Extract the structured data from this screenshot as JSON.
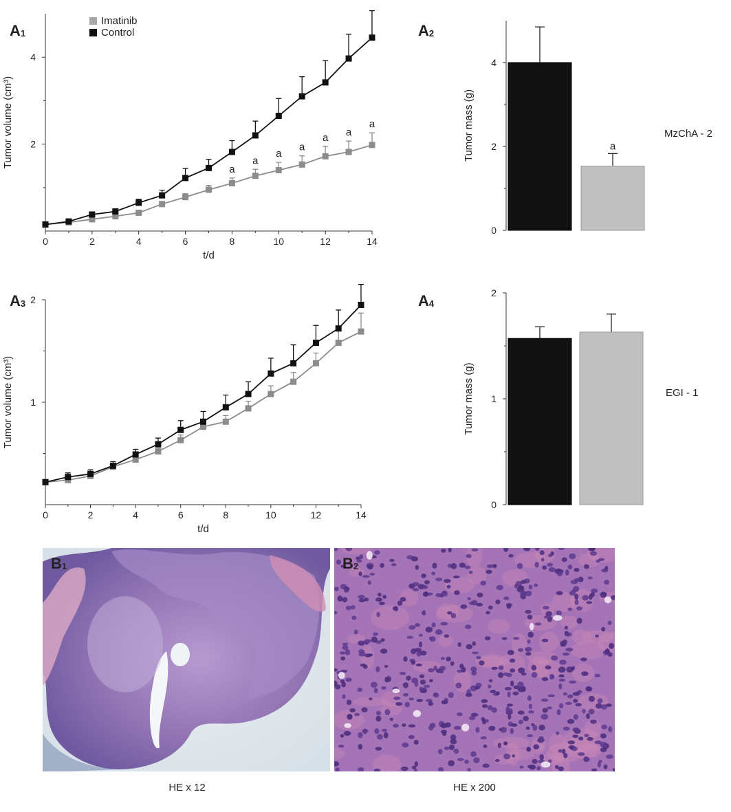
{
  "panels": {
    "a1": {
      "label": "A",
      "sub": "1"
    },
    "a2": {
      "label": "A",
      "sub": "2"
    },
    "a3": {
      "label": "A",
      "sub": "3"
    },
    "a4": {
      "label": "A",
      "sub": "4"
    },
    "b1": {
      "label": "B",
      "sub": "1"
    },
    "b2": {
      "label": "B",
      "sub": "2"
    }
  },
  "legend": {
    "imatinib": "Imatinib",
    "control": "Control"
  },
  "colors": {
    "control": "#111111",
    "imatinib": "#8c8c8c",
    "imatinib_bar": "#c0c0c0",
    "tissue_light": "#cdbfe0",
    "tissue_dark": "#8a64a8",
    "tissue_pink": "#d19ab8"
  },
  "row_labels": {
    "mzcha": "MzChA - 2",
    "egi": "EGI - 1"
  },
  "captions": {
    "b1": "HE x 12",
    "b2": "HE x 200"
  },
  "chart_data": [
    {
      "id": "A1",
      "type": "line",
      "xlabel": "t/d",
      "ylabel": "Tumor volume (cm³)",
      "xlim": [
        0,
        14
      ],
      "ylim": [
        0,
        5
      ],
      "xticks": [
        0,
        2,
        4,
        6,
        8,
        10,
        12,
        14
      ],
      "yticks": [
        2,
        4
      ],
      "x": [
        0,
        1,
        2,
        3,
        4,
        5,
        6,
        7,
        8,
        9,
        10,
        11,
        12,
        13,
        14
      ],
      "series": [
        {
          "name": "Imatinib",
          "values": [
            0.15,
            0.2,
            0.27,
            0.34,
            0.42,
            0.62,
            0.78,
            0.95,
            1.1,
            1.27,
            1.4,
            1.53,
            1.72,
            1.82,
            1.98
          ],
          "errors": [
            0.03,
            0.03,
            0.03,
            0.04,
            0.05,
            0.06,
            0.08,
            0.1,
            0.12,
            0.15,
            0.18,
            0.2,
            0.23,
            0.25,
            0.28
          ]
        },
        {
          "name": "Control",
          "values": [
            0.15,
            0.22,
            0.38,
            0.45,
            0.65,
            0.82,
            1.22,
            1.45,
            1.82,
            2.2,
            2.65,
            3.1,
            3.42,
            3.97,
            4.45
          ],
          "errors": [
            0.03,
            0.04,
            0.05,
            0.06,
            0.08,
            0.12,
            0.22,
            0.2,
            0.26,
            0.33,
            0.4,
            0.45,
            0.5,
            0.56,
            0.62
          ]
        }
      ],
      "annotations": [
        {
          "x": 8,
          "text": "a"
        },
        {
          "x": 9,
          "text": "a"
        },
        {
          "x": 10,
          "text": "a"
        },
        {
          "x": 11,
          "text": "a"
        },
        {
          "x": 12,
          "text": "a"
        },
        {
          "x": 13,
          "text": "a"
        },
        {
          "x": 14,
          "text": "a"
        }
      ]
    },
    {
      "id": "A2",
      "type": "bar",
      "ylabel": "Tumor mass (g)",
      "ylim": [
        0,
        5
      ],
      "yticks": [
        0,
        2,
        4
      ],
      "categories": [
        "Control",
        "Imatinib"
      ],
      "values": [
        4.0,
        1.53
      ],
      "errors": [
        0.85,
        0.3
      ],
      "annotations": [
        {
          "category": "Imatinib",
          "text": "a"
        }
      ]
    },
    {
      "id": "A3",
      "type": "line",
      "xlabel": "t/d",
      "ylabel": "Tumor volume (cm³)",
      "xlim": [
        0,
        14
      ],
      "ylim": [
        0,
        2
      ],
      "xticks": [
        0,
        2,
        4,
        6,
        8,
        10,
        12,
        14
      ],
      "yticks": [
        1,
        2
      ],
      "x": [
        0,
        1,
        2,
        3,
        4,
        5,
        6,
        7,
        8,
        9,
        10,
        11,
        12,
        13,
        14
      ],
      "series": [
        {
          "name": "Imatinib",
          "values": [
            0.22,
            0.24,
            0.28,
            0.37,
            0.44,
            0.52,
            0.63,
            0.76,
            0.81,
            0.94,
            1.08,
            1.2,
            1.38,
            1.58,
            1.69
          ],
          "errors": [
            0.02,
            0.02,
            0.02,
            0.03,
            0.03,
            0.04,
            0.05,
            0.05,
            0.06,
            0.07,
            0.08,
            0.09,
            0.1,
            0.12,
            0.18
          ]
        },
        {
          "name": "Control",
          "values": [
            0.22,
            0.27,
            0.3,
            0.38,
            0.49,
            0.59,
            0.73,
            0.81,
            0.95,
            1.08,
            1.28,
            1.38,
            1.58,
            1.72,
            1.95
          ],
          "errors": [
            0.02,
            0.04,
            0.04,
            0.04,
            0.05,
            0.06,
            0.09,
            0.1,
            0.12,
            0.12,
            0.15,
            0.18,
            0.17,
            0.18,
            0.2
          ]
        }
      ]
    },
    {
      "id": "A4",
      "type": "bar",
      "ylabel": "Tumor mass (g)",
      "ylim": [
        0,
        2
      ],
      "yticks": [
        0,
        1,
        2
      ],
      "categories": [
        "Control",
        "Imatinib"
      ],
      "values": [
        1.57,
        1.63
      ],
      "errors": [
        0.11,
        0.17
      ]
    }
  ]
}
